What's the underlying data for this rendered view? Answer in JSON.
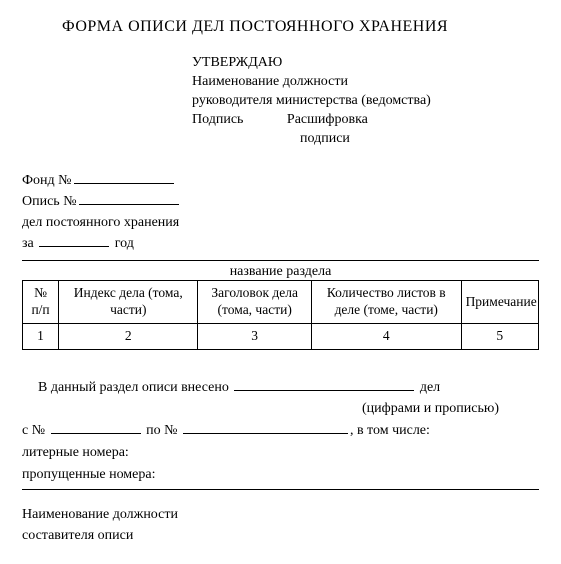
{
  "title": "ФОРМА ОПИСИ ДЕЛ ПОСТОЯННОГО ХРАНЕНИЯ",
  "approve": {
    "heading": "УТВЕРЖДАЮ",
    "position_line": "Наименование должности",
    "head_line": "руководителя министерства (ведомства)",
    "signature_label": "Подпись",
    "decipher_label": "Расшифровка",
    "decipher_sub": "подписи"
  },
  "fond": {
    "fond_label": "Фонд №",
    "opis_label": "Опись №",
    "storage_line": "дел постоянного хранения",
    "za_label": "за",
    "year_label": "год"
  },
  "section_name_label": "название раздела",
  "table": {
    "headers": [
      "№ п/п",
      "Индекс дела (тома, части)",
      "Заголовок дела (тома, части)",
      "Количество листов в деле (томе, части)",
      "Примечание"
    ],
    "row_numbers": [
      "1",
      "2",
      "3",
      "4",
      "5"
    ]
  },
  "summary": {
    "intro": "В данный раздел описи внесено",
    "del_suffix": "дел",
    "cipher_note": "(цифрами и прописью)",
    "from_label": "с №",
    "to_label": "по №",
    "incl_label": ", в том числе:",
    "liter_label": "литерные номера:",
    "missed_label": "пропущенные номера:"
  },
  "footer": {
    "position_label": "Наименование должности",
    "compiler_label": "составителя описи"
  }
}
